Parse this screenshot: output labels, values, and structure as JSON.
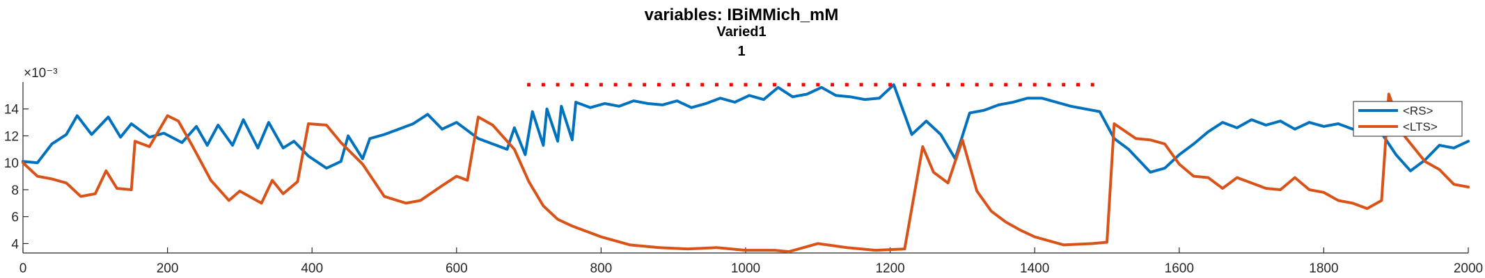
{
  "chart_data": {
    "type": "line",
    "title": "variables: IBiMMich_mM",
    "subtitle_line1": "Varied1",
    "subtitle_line2": "1",
    "exponent_label": "×10⁻³",
    "xlim": [
      0,
      2000
    ],
    "ylim": [
      0.0033,
      0.016
    ],
    "x_ticks": [
      0,
      200,
      400,
      600,
      800,
      1000,
      1200,
      1400,
      1600,
      1800,
      2000
    ],
    "y_ticks": [
      0.004,
      0.006,
      0.008,
      0.01,
      0.012,
      0.014
    ],
    "y_tick_labels": [
      "4",
      "6",
      "8",
      "10",
      "12",
      "14"
    ],
    "legend_position": "top-right",
    "grid": false,
    "raster_markers": {
      "color": "#ff0000",
      "y": 0.0158,
      "x": [
        700,
        720,
        740,
        760,
        780,
        800,
        820,
        840,
        860,
        880,
        900,
        920,
        940,
        960,
        980,
        1000,
        1020,
        1040,
        1060,
        1080,
        1100,
        1120,
        1140,
        1160,
        1180,
        1200,
        1220,
        1240,
        1260,
        1280,
        1300,
        1320,
        1340,
        1360,
        1380,
        1400,
        1420,
        1440,
        1460,
        1480
      ]
    },
    "series": [
      {
        "name": "<RS>",
        "color": "#0072BD",
        "events": [
          75,
          118,
          150,
          195,
          240,
          270,
          305,
          340,
          375,
          430,
          490,
          520,
          560,
          610,
          680,
          705,
          725,
          745,
          765,
          785,
          805,
          825,
          845,
          865,
          885,
          905,
          925,
          945,
          965,
          985,
          1005,
          1025,
          1045,
          1065,
          1085,
          1105,
          1125,
          1145,
          1165,
          1185,
          1205,
          1230,
          1250,
          1270,
          1290,
          1310,
          1330,
          1350,
          1370,
          1390,
          1410,
          1430,
          1450,
          1470,
          1490,
          1510,
          1530,
          1560,
          1600,
          1620,
          1640,
          1660,
          1680,
          1700,
          1720,
          1740,
          1760,
          1780,
          1800,
          1820,
          1840,
          1860,
          1880,
          1900,
          1920,
          1940,
          1960,
          1980
        ],
        "points": [
          [
            0,
            0.0101
          ],
          [
            20,
            0.01
          ],
          [
            40,
            0.0114
          ],
          [
            60,
            0.0121
          ],
          [
            75,
            0.0135
          ],
          [
            95,
            0.0121
          ],
          [
            118,
            0.0134
          ],
          [
            135,
            0.0119
          ],
          [
            150,
            0.0129
          ],
          [
            175,
            0.0119
          ],
          [
            195,
            0.0122
          ],
          [
            220,
            0.0115
          ],
          [
            240,
            0.0127
          ],
          [
            255,
            0.0113
          ],
          [
            270,
            0.0128
          ],
          [
            290,
            0.0113
          ],
          [
            305,
            0.0132
          ],
          [
            325,
            0.0111
          ],
          [
            340,
            0.013
          ],
          [
            360,
            0.0111
          ],
          [
            375,
            0.0116
          ],
          [
            395,
            0.0105
          ],
          [
            420,
            0.0096
          ],
          [
            440,
            0.0101
          ],
          [
            450,
            0.012
          ],
          [
            470,
            0.0103
          ],
          [
            480,
            0.0118
          ],
          [
            500,
            0.0121
          ],
          [
            540,
            0.0129
          ],
          [
            560,
            0.0136
          ],
          [
            580,
            0.0125
          ],
          [
            600,
            0.013
          ],
          [
            630,
            0.0118
          ],
          [
            670,
            0.011
          ],
          [
            680,
            0.0126
          ],
          [
            695,
            0.0106
          ],
          [
            705,
            0.0138
          ],
          [
            720,
            0.0113
          ],
          [
            725,
            0.014
          ],
          [
            740,
            0.0116
          ],
          [
            745,
            0.0142
          ],
          [
            760,
            0.0117
          ],
          [
            765,
            0.0145
          ],
          [
            785,
            0.0141
          ],
          [
            805,
            0.0144
          ],
          [
            825,
            0.0142
          ],
          [
            845,
            0.0146
          ],
          [
            865,
            0.0144
          ],
          [
            885,
            0.0143
          ],
          [
            905,
            0.0146
          ],
          [
            925,
            0.0141
          ],
          [
            945,
            0.0144
          ],
          [
            965,
            0.0148
          ],
          [
            985,
            0.0145
          ],
          [
            1005,
            0.015
          ],
          [
            1025,
            0.0147
          ],
          [
            1045,
            0.0156
          ],
          [
            1065,
            0.0149
          ],
          [
            1085,
            0.0151
          ],
          [
            1105,
            0.0156
          ],
          [
            1125,
            0.015
          ],
          [
            1145,
            0.0149
          ],
          [
            1165,
            0.0147
          ],
          [
            1185,
            0.0148
          ],
          [
            1205,
            0.0158
          ],
          [
            1230,
            0.0121
          ],
          [
            1250,
            0.0131
          ],
          [
            1270,
            0.0121
          ],
          [
            1290,
            0.0103
          ],
          [
            1310,
            0.0137
          ],
          [
            1330,
            0.0139
          ],
          [
            1350,
            0.0143
          ],
          [
            1370,
            0.0145
          ],
          [
            1390,
            0.0148
          ],
          [
            1410,
            0.0148
          ],
          [
            1430,
            0.0145
          ],
          [
            1450,
            0.0142
          ],
          [
            1470,
            0.014
          ],
          [
            1490,
            0.0138
          ],
          [
            1510,
            0.0118
          ],
          [
            1530,
            0.011
          ],
          [
            1560,
            0.0093
          ],
          [
            1580,
            0.0096
          ],
          [
            1600,
            0.0106
          ],
          [
            1620,
            0.0114
          ],
          [
            1640,
            0.0123
          ],
          [
            1660,
            0.013
          ],
          [
            1680,
            0.0126
          ],
          [
            1700,
            0.0132
          ],
          [
            1720,
            0.0128
          ],
          [
            1740,
            0.0131
          ],
          [
            1760,
            0.0125
          ],
          [
            1780,
            0.013
          ],
          [
            1800,
            0.0127
          ],
          [
            1820,
            0.0129
          ],
          [
            1840,
            0.0125
          ],
          [
            1860,
            0.0126
          ],
          [
            1880,
            0.0122
          ],
          [
            1900,
            0.0106
          ],
          [
            1920,
            0.0094
          ],
          [
            1940,
            0.0102
          ],
          [
            1960,
            0.0113
          ],
          [
            1980,
            0.0111
          ],
          [
            2000,
            0.0116
          ]
        ]
      },
      {
        "name": "<LTS>",
        "color": "#D95319",
        "events": [
          20,
          115,
          150,
          165,
          235,
          290,
          300,
          340,
          380,
          425,
          470,
          540,
          630,
          1245,
          1275,
          1510
        ],
        "points": [
          [
            0,
            0.01
          ],
          [
            20,
            0.009
          ],
          [
            40,
            0.0088
          ],
          [
            60,
            0.0085
          ],
          [
            80,
            0.0075
          ],
          [
            100,
            0.0077
          ],
          [
            115,
            0.0094
          ],
          [
            130,
            0.0081
          ],
          [
            150,
            0.008
          ],
          [
            155,
            0.0116
          ],
          [
            175,
            0.0112
          ],
          [
            200,
            0.0135
          ],
          [
            215,
            0.0131
          ],
          [
            235,
            0.0112
          ],
          [
            260,
            0.0087
          ],
          [
            285,
            0.0072
          ],
          [
            300,
            0.0079
          ],
          [
            330,
            0.007
          ],
          [
            345,
            0.0087
          ],
          [
            360,
            0.0077
          ],
          [
            380,
            0.0086
          ],
          [
            395,
            0.0129
          ],
          [
            420,
            0.0128
          ],
          [
            440,
            0.0115
          ],
          [
            470,
            0.0099
          ],
          [
            500,
            0.0075
          ],
          [
            530,
            0.007
          ],
          [
            550,
            0.0072
          ],
          [
            580,
            0.0083
          ],
          [
            600,
            0.009
          ],
          [
            615,
            0.0087
          ],
          [
            630,
            0.0134
          ],
          [
            650,
            0.0128
          ],
          [
            680,
            0.011
          ],
          [
            700,
            0.0086
          ],
          [
            720,
            0.0068
          ],
          [
            740,
            0.0058
          ],
          [
            760,
            0.0053
          ],
          [
            800,
            0.0045
          ],
          [
            840,
            0.0039
          ],
          [
            880,
            0.0037
          ],
          [
            920,
            0.0036
          ],
          [
            960,
            0.0037
          ],
          [
            1000,
            0.0035
          ],
          [
            1040,
            0.0035
          ],
          [
            1060,
            0.0034
          ],
          [
            1080,
            0.0037
          ],
          [
            1100,
            0.004
          ],
          [
            1140,
            0.0037
          ],
          [
            1180,
            0.0035
          ],
          [
            1220,
            0.0036
          ],
          [
            1245,
            0.0112
          ],
          [
            1260,
            0.0093
          ],
          [
            1280,
            0.0085
          ],
          [
            1300,
            0.0117
          ],
          [
            1320,
            0.0079
          ],
          [
            1340,
            0.0064
          ],
          [
            1360,
            0.0056
          ],
          [
            1380,
            0.005
          ],
          [
            1400,
            0.0045
          ],
          [
            1440,
            0.0039
          ],
          [
            1480,
            0.004
          ],
          [
            1500,
            0.0041
          ],
          [
            1510,
            0.0129
          ],
          [
            1540,
            0.0118
          ],
          [
            1560,
            0.0117
          ],
          [
            1580,
            0.0114
          ],
          [
            1600,
            0.0099
          ],
          [
            1620,
            0.009
          ],
          [
            1640,
            0.0089
          ],
          [
            1660,
            0.0081
          ],
          [
            1680,
            0.0089
          ],
          [
            1700,
            0.0085
          ],
          [
            1720,
            0.0081
          ],
          [
            1740,
            0.008
          ],
          [
            1760,
            0.0089
          ],
          [
            1780,
            0.008
          ],
          [
            1800,
            0.0078
          ],
          [
            1820,
            0.0072
          ],
          [
            1840,
            0.007
          ],
          [
            1860,
            0.0066
          ],
          [
            1880,
            0.0072
          ],
          [
            1890,
            0.0151
          ],
          [
            1910,
            0.0121
          ],
          [
            1940,
            0.0101
          ],
          [
            1960,
            0.0095
          ],
          [
            1980,
            0.0084
          ],
          [
            2000,
            0.0082
          ]
        ]
      }
    ]
  }
}
